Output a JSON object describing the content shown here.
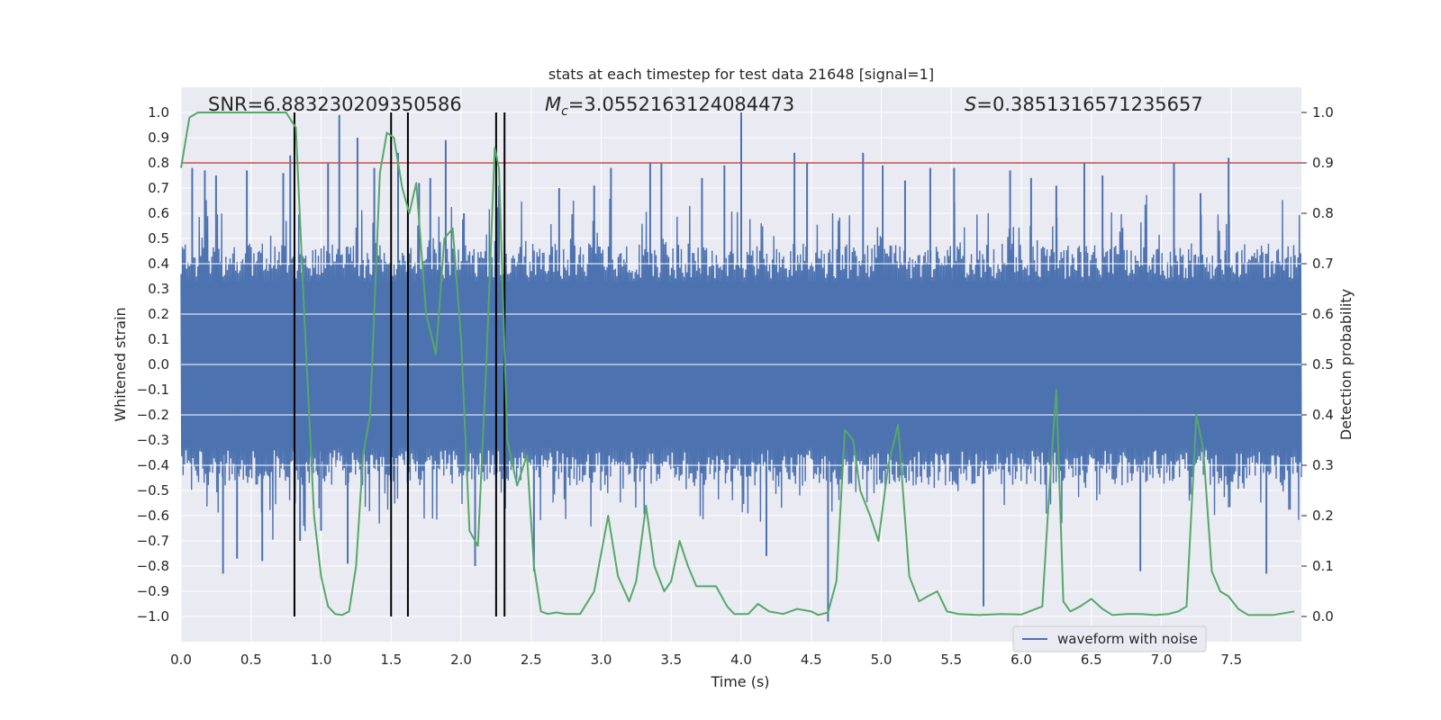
{
  "chart_data": {
    "type": "line",
    "title": "stats at each timestep for test data 21648 [signal=1]",
    "xlabel": "Time (s)",
    "ylabel": "Whitened strain",
    "y2label": "Detection probability",
    "xlim": [
      0.0,
      8.0
    ],
    "ylim": [
      -1.1,
      1.1
    ],
    "y2lim": [
      -0.05,
      1.05
    ],
    "xticks": [
      "0.0",
      "0.5",
      "1.0",
      "1.5",
      "2.0",
      "2.5",
      "3.0",
      "3.5",
      "4.0",
      "4.5",
      "5.0",
      "5.5",
      "6.0",
      "6.5",
      "7.0",
      "7.5"
    ],
    "yticks": [
      "1.0",
      "0.9",
      "0.8",
      "0.7",
      "0.6",
      "0.5",
      "0.4",
      "0.3",
      "0.2",
      "0.1",
      "0.0",
      "−0.1",
      "−0.2",
      "−0.3",
      "−0.4",
      "−0.5",
      "−0.6",
      "−0.7",
      "−0.8",
      "−0.9",
      "−1.0"
    ],
    "y2ticks": [
      "1.0",
      "0.9",
      "0.8",
      "0.7",
      "0.6",
      "0.5",
      "0.4",
      "0.3",
      "0.2",
      "0.1",
      "0.0"
    ],
    "annotations": {
      "snr": "SNR=6.883230209350586",
      "mc_symbol": "M",
      "mc_sub": "c",
      "mc_value": "=3.0552163124084473",
      "s_symbol": "S",
      "s_value": "=0.3851316571235657"
    },
    "legend": {
      "label": "waveform with noise",
      "placement": "lower-right"
    },
    "threshold_prob": 0.9,
    "vlines": [
      0.81,
      1.5,
      1.62,
      2.25,
      2.31
    ],
    "waveform": {
      "name": "waveform with noise",
      "color": "#4c72b0",
      "x_range": [
        0.0,
        8.0
      ],
      "spikes": [
        {
          "x": 0.08,
          "y": 0.78
        },
        {
          "x": 0.17,
          "y": 0.77
        },
        {
          "x": 0.25,
          "y": 0.75
        },
        {
          "x": 0.3,
          "y": -0.83
        },
        {
          "x": 0.4,
          "y": -0.77
        },
        {
          "x": 0.47,
          "y": 0.77
        },
        {
          "x": 0.58,
          "y": -0.78
        },
        {
          "x": 0.73,
          "y": 0.76
        },
        {
          "x": 0.78,
          "y": 0.83
        },
        {
          "x": 0.85,
          "y": -0.7
        },
        {
          "x": 1.0,
          "y": -0.66
        },
        {
          "x": 1.05,
          "y": 0.8
        },
        {
          "x": 1.13,
          "y": 0.99
        },
        {
          "x": 1.19,
          "y": -0.79
        },
        {
          "x": 1.26,
          "y": 0.9
        },
        {
          "x": 1.38,
          "y": 0.78
        },
        {
          "x": 1.55,
          "y": 0.84
        },
        {
          "x": 1.7,
          "y": 0.72
        },
        {
          "x": 1.78,
          "y": 0.74
        },
        {
          "x": 1.89,
          "y": 0.89
        },
        {
          "x": 2.02,
          "y": 0.6
        },
        {
          "x": 2.1,
          "y": -0.8
        },
        {
          "x": 2.27,
          "y": 0.71
        },
        {
          "x": 2.52,
          "y": -0.82
        },
        {
          "x": 2.7,
          "y": 0.7
        },
        {
          "x": 2.95,
          "y": 0.71
        },
        {
          "x": 3.07,
          "y": 0.78
        },
        {
          "x": 3.35,
          "y": 0.8
        },
        {
          "x": 3.43,
          "y": 0.8
        },
        {
          "x": 3.72,
          "y": 0.74
        },
        {
          "x": 3.88,
          "y": 0.79
        },
        {
          "x": 4.0,
          "y": 1.0
        },
        {
          "x": 4.18,
          "y": -0.76
        },
        {
          "x": 4.38,
          "y": 0.84
        },
        {
          "x": 4.47,
          "y": 0.8
        },
        {
          "x": 4.62,
          "y": -1.02
        },
        {
          "x": 4.87,
          "y": 0.84
        },
        {
          "x": 5.01,
          "y": 0.79
        },
        {
          "x": 5.17,
          "y": 0.73
        },
        {
          "x": 5.35,
          "y": 0.78
        },
        {
          "x": 5.52,
          "y": 0.78
        },
        {
          "x": 5.73,
          "y": -0.96
        },
        {
          "x": 5.92,
          "y": 0.77
        },
        {
          "x": 6.07,
          "y": 0.74
        },
        {
          "x": 6.25,
          "y": 0.71
        },
        {
          "x": 6.45,
          "y": 0.8
        },
        {
          "x": 6.58,
          "y": 0.75
        },
        {
          "x": 6.85,
          "y": -0.82
        },
        {
          "x": 7.09,
          "y": 0.8
        },
        {
          "x": 7.28,
          "y": 0.68
        },
        {
          "x": 7.48,
          "y": 0.82
        },
        {
          "x": 7.75,
          "y": -0.83
        }
      ]
    },
    "probability": {
      "color": "#55a868",
      "x": [
        0.0,
        0.06,
        0.12,
        0.25,
        0.5,
        0.75,
        0.82,
        0.88,
        0.95,
        1.0,
        1.05,
        1.1,
        1.15,
        1.2,
        1.25,
        1.3,
        1.35,
        1.42,
        1.47,
        1.52,
        1.58,
        1.63,
        1.68,
        1.75,
        1.82,
        1.88,
        1.94,
        2.0,
        2.06,
        2.12,
        2.18,
        2.24,
        2.27,
        2.33,
        2.4,
        2.47,
        2.52,
        2.57,
        2.62,
        2.68,
        2.75,
        2.85,
        2.95,
        3.05,
        3.12,
        3.2,
        3.25,
        3.32,
        3.38,
        3.45,
        3.5,
        3.56,
        3.62,
        3.68,
        3.75,
        3.82,
        3.9,
        3.95,
        4.05,
        4.12,
        4.2,
        4.3,
        4.4,
        4.5,
        4.55,
        4.62,
        4.68,
        4.74,
        4.8,
        4.85,
        4.92,
        4.98,
        5.05,
        5.12,
        5.2,
        5.27,
        5.33,
        5.4,
        5.47,
        5.55,
        5.7,
        5.85,
        6.0,
        6.15,
        6.2,
        6.25,
        6.3,
        6.35,
        6.42,
        6.5,
        6.58,
        6.65,
        6.75,
        6.85,
        6.95,
        7.05,
        7.12,
        7.18,
        7.25,
        7.3,
        7.36,
        7.42,
        7.48,
        7.55,
        7.62,
        7.7,
        7.8,
        7.95
      ],
      "y": [
        0.89,
        0.99,
        1.0,
        1.0,
        1.0,
        1.0,
        0.97,
        0.6,
        0.2,
        0.08,
        0.02,
        0.005,
        0.003,
        0.01,
        0.1,
        0.32,
        0.4,
        0.88,
        0.96,
        0.95,
        0.85,
        0.8,
        0.86,
        0.6,
        0.52,
        0.75,
        0.77,
        0.55,
        0.17,
        0.14,
        0.5,
        0.93,
        0.89,
        0.35,
        0.26,
        0.32,
        0.1,
        0.01,
        0.005,
        0.008,
        0.005,
        0.005,
        0.05,
        0.2,
        0.08,
        0.03,
        0.07,
        0.22,
        0.1,
        0.05,
        0.07,
        0.15,
        0.1,
        0.06,
        0.06,
        0.06,
        0.02,
        0.005,
        0.005,
        0.025,
        0.01,
        0.005,
        0.015,
        0.01,
        0.003,
        0.008,
        0.07,
        0.37,
        0.35,
        0.25,
        0.2,
        0.15,
        0.3,
        0.38,
        0.08,
        0.03,
        0.04,
        0.05,
        0.01,
        0.005,
        0.003,
        0.005,
        0.004,
        0.02,
        0.25,
        0.45,
        0.03,
        0.01,
        0.02,
        0.035,
        0.015,
        0.003,
        0.005,
        0.005,
        0.003,
        0.005,
        0.01,
        0.02,
        0.4,
        0.33,
        0.09,
        0.05,
        0.04,
        0.015,
        0.003,
        0.003,
        0.003,
        0.01
      ]
    },
    "colors": {
      "background": "#eaeaf2",
      "grid": "#ffffff",
      "threshold": "#c44e52",
      "vline": "#000000"
    },
    "grid": true
  }
}
